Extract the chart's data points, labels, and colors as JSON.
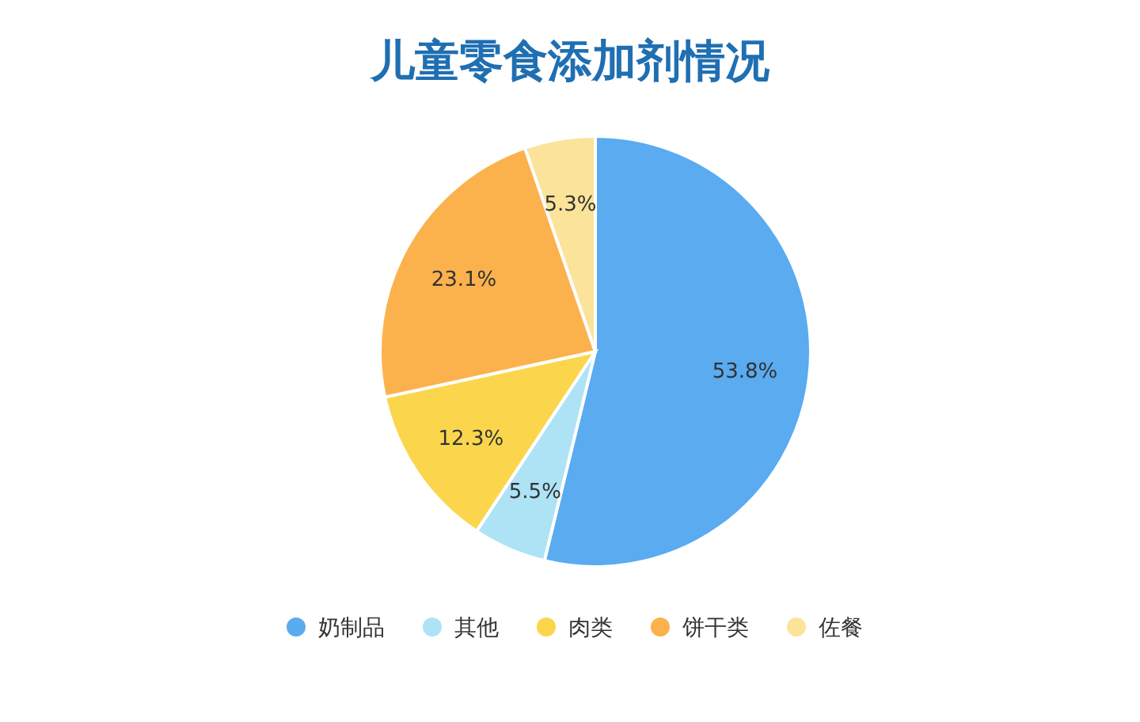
{
  "chart_data": {
    "type": "pie",
    "title": "儿童零食添加剂情况",
    "categories": [
      "奶制品",
      "其他",
      "肉类",
      "饼干类",
      "佐餐"
    ],
    "values": [
      53.8,
      5.5,
      12.3,
      23.1,
      5.3
    ],
    "colors": [
      "#5aabf0",
      "#ade3f5",
      "#fbd64c",
      "#fbb24d",
      "#fbe39a"
    ],
    "value_labels": [
      "53.8%",
      "5.5%",
      "12.3%",
      "23.1%",
      "5.3%"
    ],
    "legend": "bottom"
  }
}
